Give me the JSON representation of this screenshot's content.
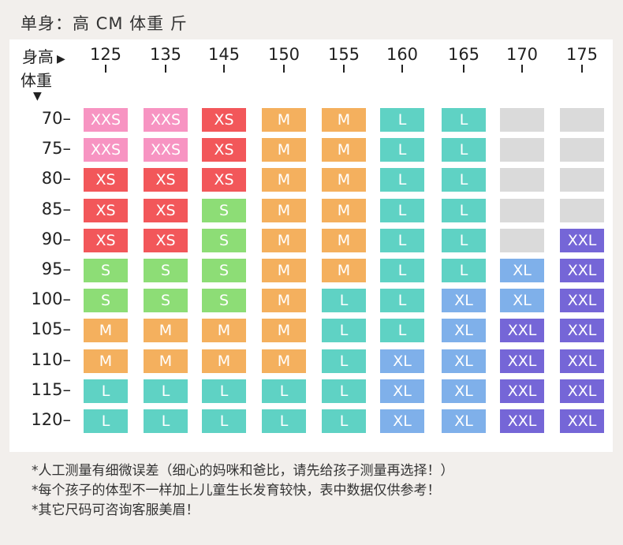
{
  "unit_title": "单身：高 CM 体重 斤",
  "corner": {
    "height_label": "身高",
    "height_arrow": "▶",
    "weight_label": "体重",
    "weight_arrow": "▼"
  },
  "heights": [
    "125",
    "135",
    "145",
    "150",
    "155",
    "160",
    "165",
    "170",
    "175"
  ],
  "weights": [
    "70–",
    "75–",
    "80–",
    "85–",
    "90–",
    "95–",
    "100–",
    "105–",
    "110–",
    "115–",
    "120–"
  ],
  "size_colors": {
    "XXS": "#f794c2",
    "XS": "#f2575a",
    "S": "#8ddd76",
    "M": "#f4b05e",
    "L": "#5fd2c4",
    "XL": "#7fb0ea",
    "XXL": "#7566d7",
    "": "#dadada"
  },
  "rows": [
    [
      "XXS",
      "XXS",
      "XS",
      "M",
      "M",
      "L",
      "L",
      "",
      ""
    ],
    [
      "XXS",
      "XXS",
      "XS",
      "M",
      "M",
      "L",
      "L",
      "",
      ""
    ],
    [
      "XS",
      "XS",
      "XS",
      "M",
      "M",
      "L",
      "L",
      "",
      ""
    ],
    [
      "XS",
      "XS",
      "S",
      "M",
      "M",
      "L",
      "L",
      "",
      ""
    ],
    [
      "XS",
      "XS",
      "S",
      "M",
      "M",
      "L",
      "L",
      "",
      "XXL"
    ],
    [
      "S",
      "S",
      "S",
      "M",
      "M",
      "L",
      "L",
      "XL",
      "XXL"
    ],
    [
      "S",
      "S",
      "S",
      "M",
      "L",
      "L",
      "XL",
      "XL",
      "XXL"
    ],
    [
      "M",
      "M",
      "M",
      "M",
      "L",
      "L",
      "XL",
      "XXL",
      "XXL"
    ],
    [
      "M",
      "M",
      "M",
      "M",
      "L",
      "XL",
      "XL",
      "XXL",
      "XXL"
    ],
    [
      "L",
      "L",
      "L",
      "L",
      "L",
      "XL",
      "XL",
      "XXL",
      "XXL"
    ],
    [
      "L",
      "L",
      "L",
      "L",
      "L",
      "XL",
      "XL",
      "XXL",
      "XXL"
    ]
  ],
  "notes": [
    "*人工测量有细微误差（细心的妈咪和爸比，请先给孩子测量再选择！）",
    "*每个孩子的体型不一样加上儿童生长发育较快，表中数据仅供参考！",
    "*其它尺码可咨询客服美眉！"
  ]
}
